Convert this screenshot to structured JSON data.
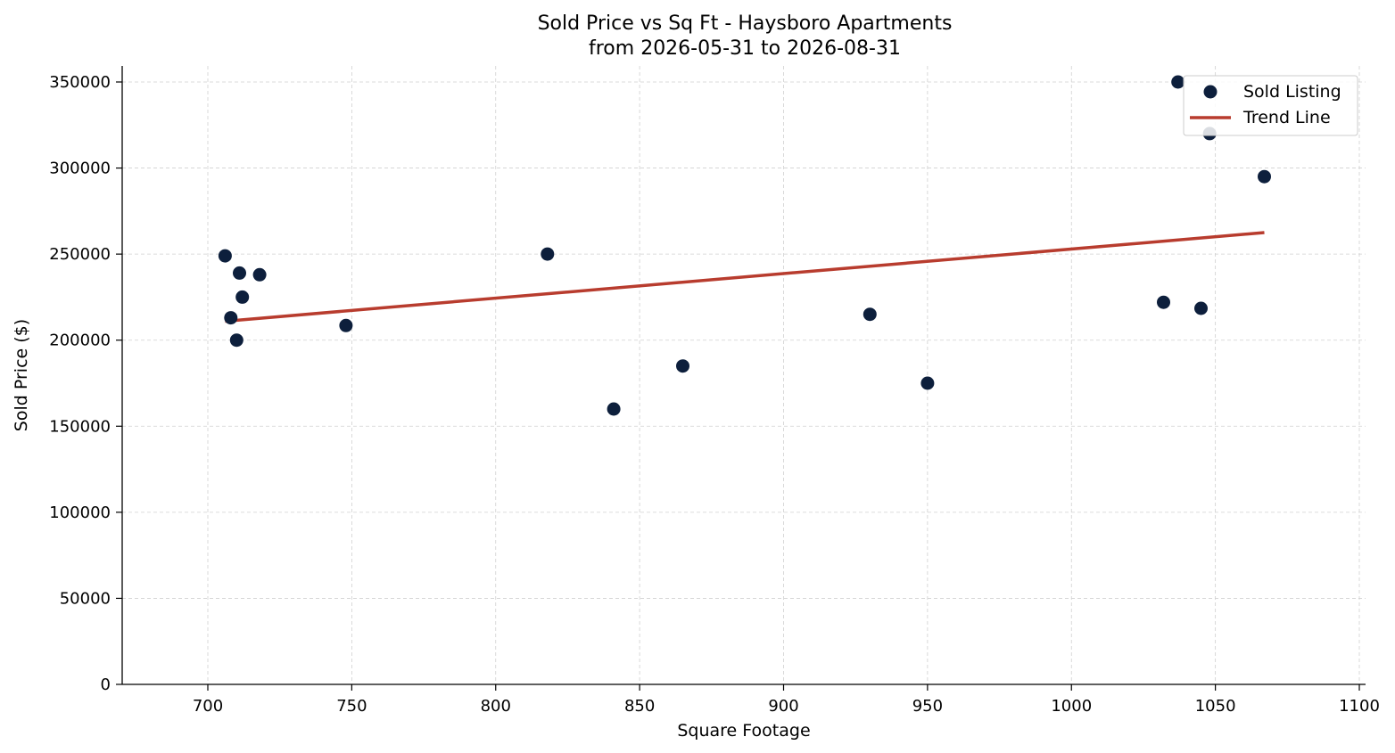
{
  "chart_data": {
    "type": "scatter",
    "title": "Sold Price vs Sq Ft - Haysboro Apartments",
    "subtitle": "from 2026-05-31 to 2026-08-31",
    "xlabel": "Square Footage",
    "ylabel": "Sold Price ($)",
    "xlim": [
      670,
      1102
    ],
    "ylim": [
      0,
      360000
    ],
    "xticks": [
      700,
      750,
      800,
      850,
      900,
      950,
      1000,
      1050,
      1100
    ],
    "yticks": [
      0,
      50000,
      100000,
      150000,
      200000,
      250000,
      300000,
      350000
    ],
    "grid": true,
    "legend_position": "top-right",
    "series": [
      {
        "name": "Sold Listing",
        "kind": "scatter",
        "color": "#0d1f3c",
        "points": [
          [
            706,
            249000
          ],
          [
            708,
            213000
          ],
          [
            710,
            200000
          ],
          [
            711,
            239000
          ],
          [
            712,
            225000
          ],
          [
            718,
            238000
          ],
          [
            748,
            208500
          ],
          [
            818,
            250000
          ],
          [
            841,
            160000
          ],
          [
            865,
            185000
          ],
          [
            930,
            215000
          ],
          [
            950,
            175000
          ],
          [
            1032,
            222000
          ],
          [
            1037,
            350000
          ],
          [
            1045,
            218500
          ],
          [
            1048,
            320000
          ],
          [
            1067,
            295000
          ]
        ]
      },
      {
        "name": "Trend Line",
        "kind": "line",
        "color": "#b83c2e",
        "points": [
          [
            706,
            211000
          ],
          [
            1067,
            262500
          ]
        ]
      }
    ]
  }
}
